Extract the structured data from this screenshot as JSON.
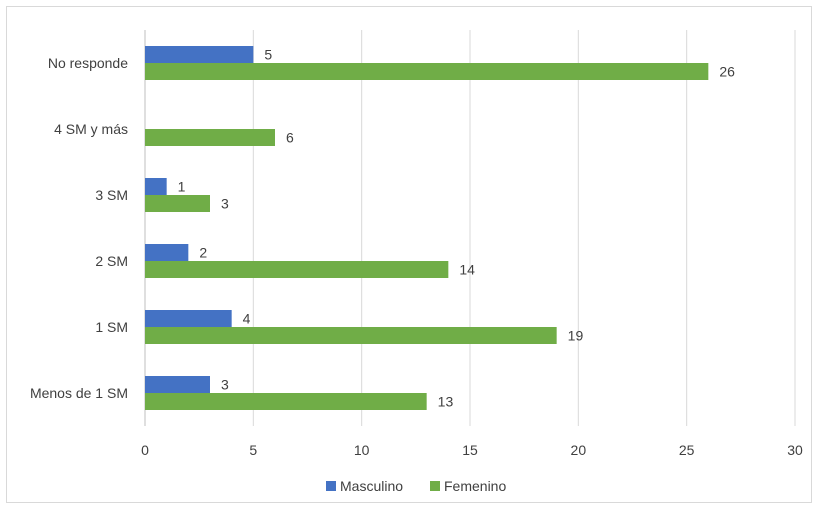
{
  "chart_data": {
    "type": "bar",
    "orientation": "horizontal",
    "categories": [
      "Menos de 1 SM",
      "1 SM",
      "2 SM",
      "3 SM",
      "4 SM y más",
      "No responde"
    ],
    "series": [
      {
        "name": "Masculino",
        "color": "#4472C4",
        "values": [
          3,
          4,
          2,
          1,
          0,
          5
        ],
        "labels": [
          "3",
          "4",
          "2",
          "1",
          "",
          "5"
        ]
      },
      {
        "name": "Femenino",
        "color": "#70AD47",
        "values": [
          13,
          19,
          14,
          3,
          6,
          26
        ],
        "labels": [
          "13",
          "19",
          "14",
          "3",
          "6",
          "26"
        ]
      }
    ],
    "xlim": [
      0,
      30
    ],
    "xticks": [
      0,
      5,
      10,
      15,
      20,
      25,
      30
    ],
    "xtick_labels": [
      "0",
      "5",
      "10",
      "15",
      "20",
      "25",
      "30"
    ],
    "grid": true,
    "legend_position": "bottom",
    "title": "",
    "xlabel": "",
    "ylabel": ""
  }
}
